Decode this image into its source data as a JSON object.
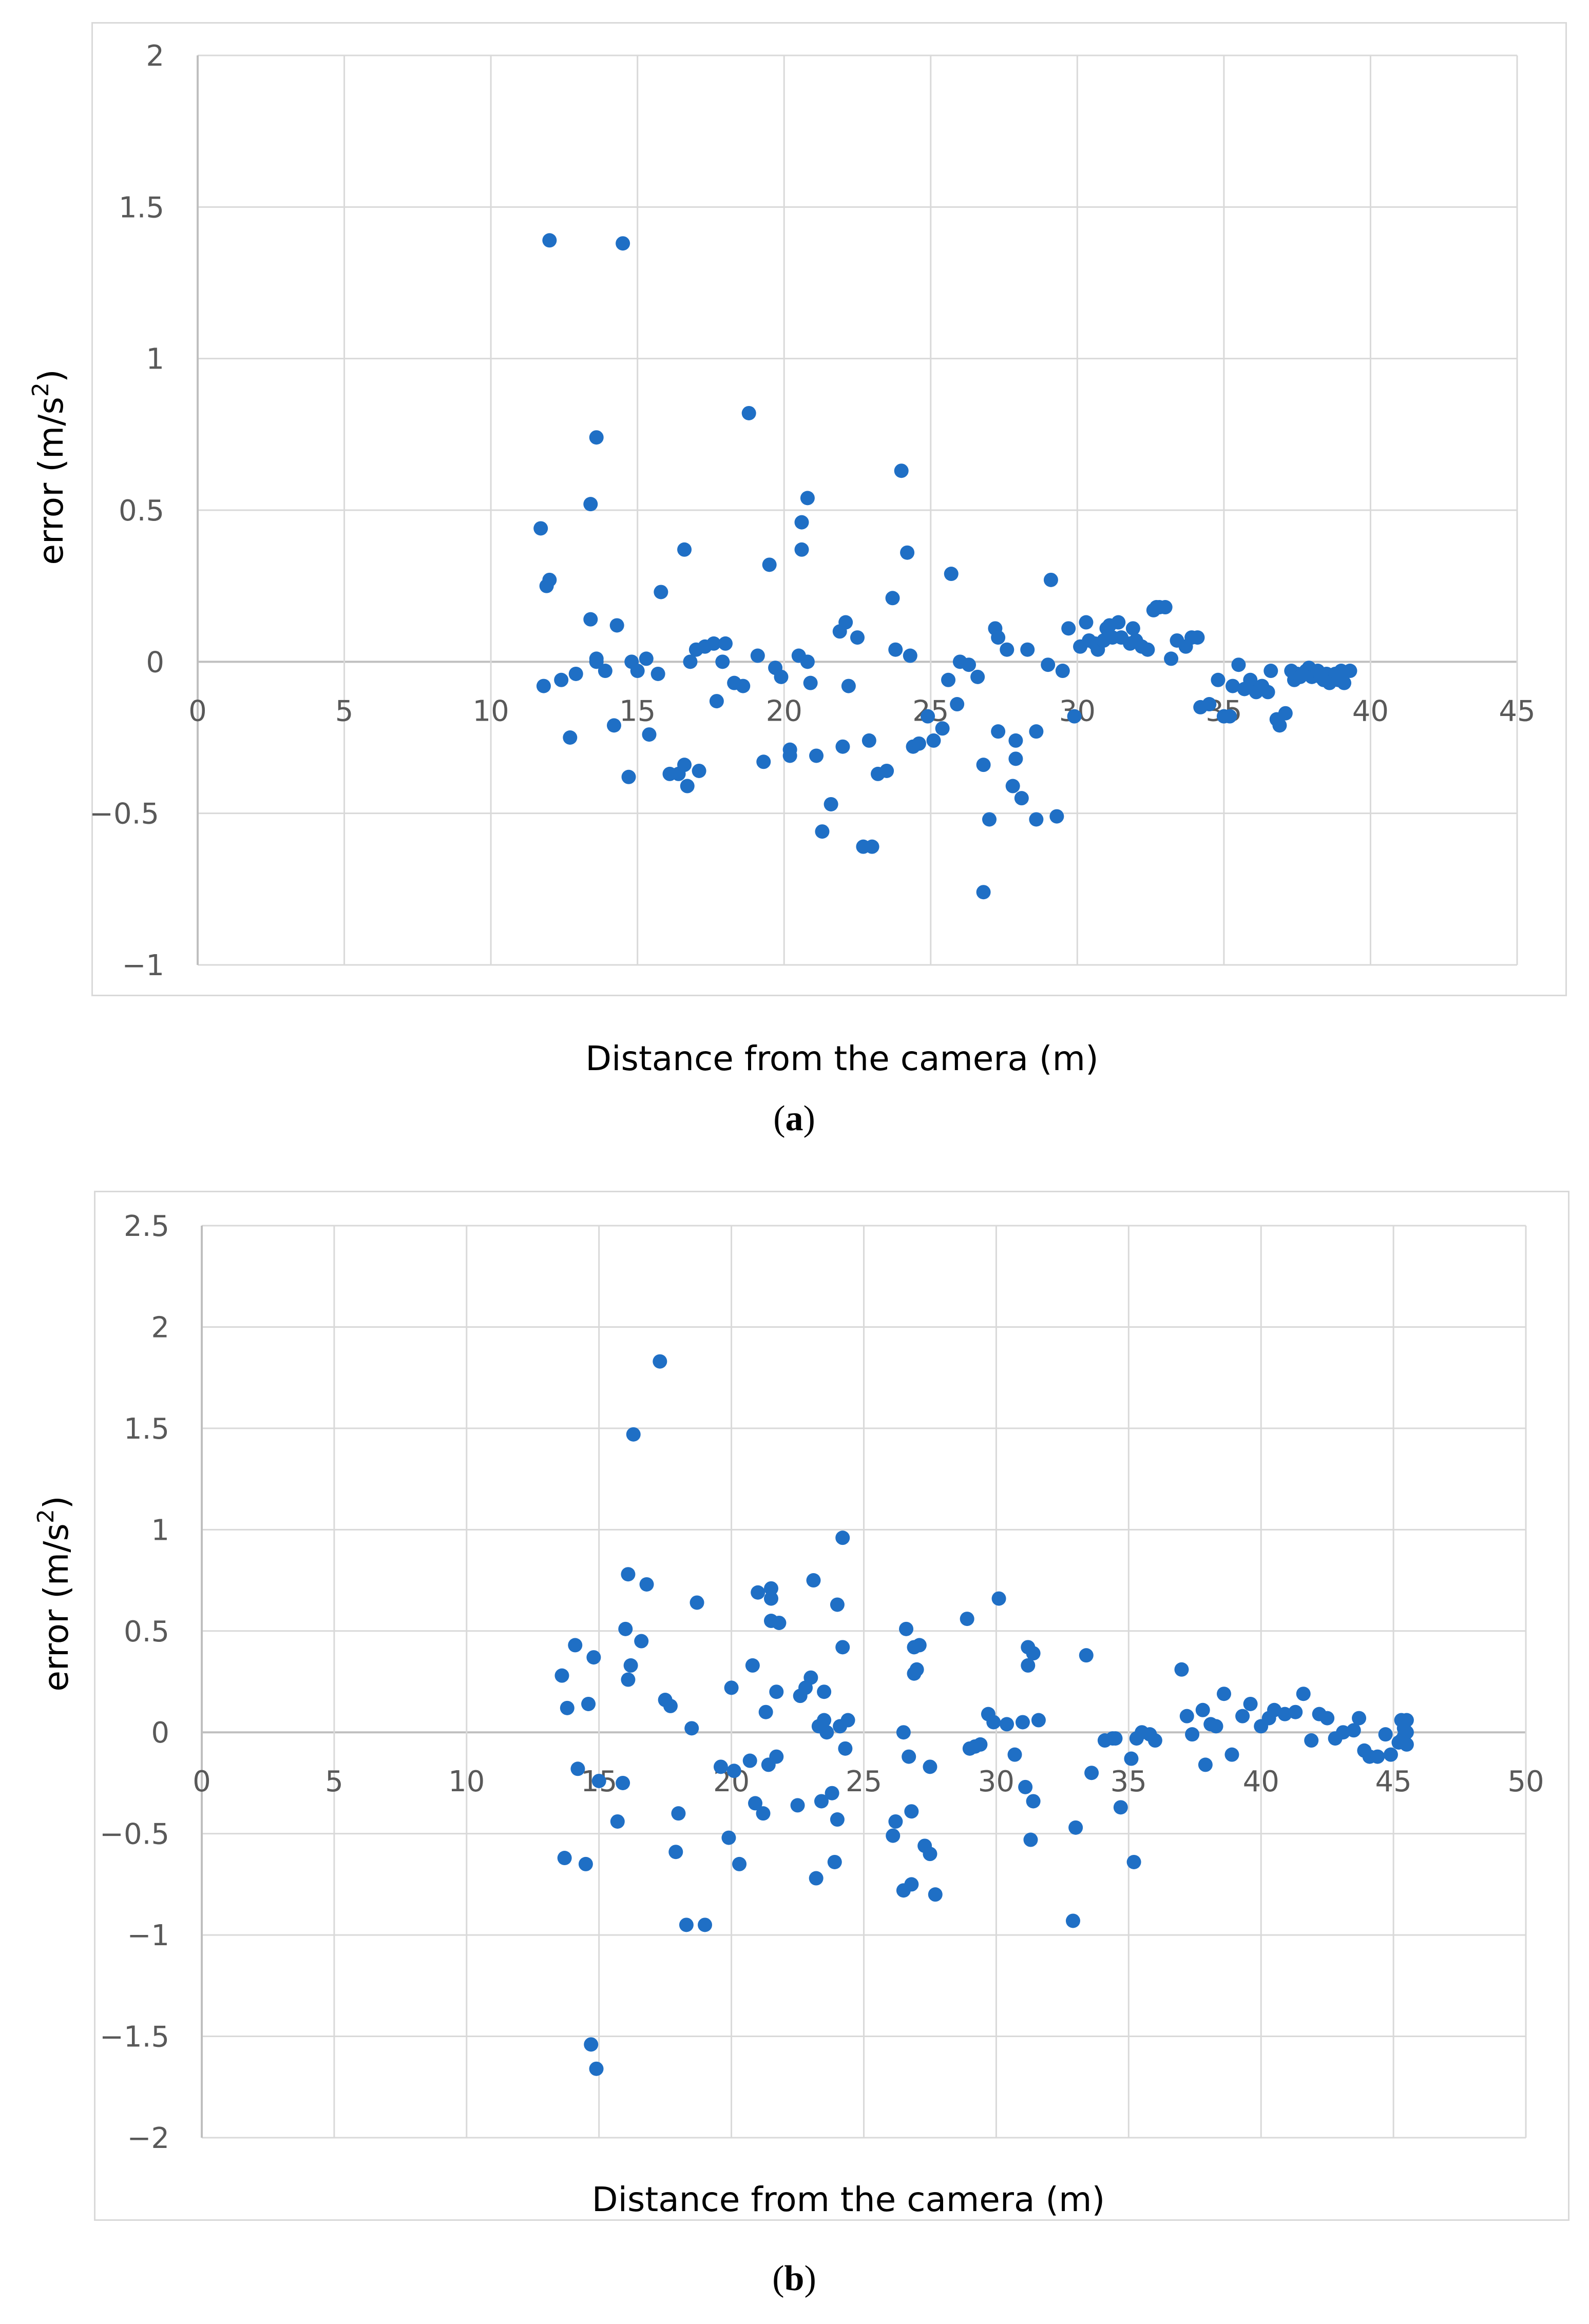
{
  "colors": {
    "point": "#1F6FC5",
    "grid": "#d9d9d9",
    "axis": "#bfbfbf",
    "tick_text": "#595959"
  },
  "captions": [
    "a",
    "b"
  ],
  "chart_data": [
    {
      "type": "scatter",
      "panel": "a",
      "xlabel": "Distance from the camera (m)",
      "ylabel_prefix": "error (m/s",
      "ylabel_sup": "2",
      "ylabel_suffix": ")",
      "xlim": [
        0,
        45
      ],
      "ylim": [
        -1,
        2
      ],
      "xticks": [
        0,
        5,
        10,
        15,
        20,
        25,
        30,
        35,
        40,
        45
      ],
      "yticks": [
        2,
        1.5,
        1,
        0.5,
        0,
        -1
      ],
      "ytick_labels": [
        "2",
        "1.5",
        "1",
        "0.5",
        "0",
        "−1"
      ],
      "ygrid": [
        -1,
        -0.5,
        0,
        0.5,
        1,
        1.5,
        2
      ],
      "neg_half_label": "−0.5",
      "points": [
        [
          11.7,
          0.44
        ],
        [
          11.8,
          -0.08
        ],
        [
          11.9,
          0.25
        ],
        [
          12.0,
          0.27
        ],
        [
          12.0,
          1.39
        ],
        [
          12.4,
          -0.06
        ],
        [
          12.7,
          -0.25
        ],
        [
          12.9,
          -0.04
        ],
        [
          13.4,
          0.52
        ],
        [
          13.4,
          0.14
        ],
        [
          13.6,
          0.74
        ],
        [
          13.6,
          0.01
        ],
        [
          13.6,
          0.0
        ],
        [
          13.9,
          -0.03
        ],
        [
          14.2,
          -0.21
        ],
        [
          14.3,
          0.12
        ],
        [
          14.5,
          1.38
        ],
        [
          14.7,
          -0.38
        ],
        [
          14.8,
          0.0
        ],
        [
          15.0,
          -0.03
        ],
        [
          15.3,
          0.01
        ],
        [
          15.4,
          -0.24
        ],
        [
          15.7,
          -0.04
        ],
        [
          15.8,
          0.23
        ],
        [
          16.1,
          -0.37
        ],
        [
          16.4,
          -0.37
        ],
        [
          16.6,
          0.37
        ],
        [
          16.6,
          -0.34
        ],
        [
          16.7,
          -0.41
        ],
        [
          16.8,
          0.0
        ],
        [
          17.0,
          0.04
        ],
        [
          17.1,
          -0.36
        ],
        [
          17.3,
          0.05
        ],
        [
          17.6,
          0.06
        ],
        [
          17.7,
          -0.13
        ],
        [
          17.9,
          0.0
        ],
        [
          18.0,
          0.06
        ],
        [
          18.3,
          -0.07
        ],
        [
          18.6,
          -0.08
        ],
        [
          18.8,
          0.82
        ],
        [
          19.1,
          0.02
        ],
        [
          19.3,
          -0.33
        ],
        [
          19.5,
          0.32
        ],
        [
          19.7,
          -0.02
        ],
        [
          19.9,
          -0.05
        ],
        [
          20.2,
          -0.29
        ],
        [
          20.2,
          -0.31
        ],
        [
          20.5,
          0.02
        ],
        [
          20.6,
          0.46
        ],
        [
          20.6,
          0.37
        ],
        [
          20.8,
          0.54
        ],
        [
          20.8,
          0.0
        ],
        [
          20.9,
          -0.07
        ],
        [
          21.1,
          -0.31
        ],
        [
          21.3,
          -0.56
        ],
        [
          21.6,
          -0.47
        ],
        [
          21.9,
          0.1
        ],
        [
          22.0,
          -0.28
        ],
        [
          22.1,
          0.13
        ],
        [
          22.2,
          -0.08
        ],
        [
          22.5,
          0.08
        ],
        [
          22.7,
          -0.61
        ],
        [
          22.9,
          -0.26
        ],
        [
          23.0,
          -0.61
        ],
        [
          23.2,
          -0.37
        ],
        [
          23.5,
          -0.36
        ],
        [
          23.7,
          0.21
        ],
        [
          23.8,
          0.04
        ],
        [
          24.0,
          0.63
        ],
        [
          24.2,
          0.36
        ],
        [
          24.3,
          0.02
        ],
        [
          24.4,
          -0.28
        ],
        [
          24.6,
          -0.27
        ],
        [
          24.9,
          -0.18
        ],
        [
          25.1,
          -0.26
        ],
        [
          25.4,
          -0.22
        ],
        [
          25.6,
          -0.06
        ],
        [
          25.7,
          0.29
        ],
        [
          25.9,
          -0.14
        ],
        [
          26.0,
          0.0
        ],
        [
          26.3,
          -0.01
        ],
        [
          26.6,
          -0.05
        ],
        [
          26.8,
          -0.34
        ],
        [
          26.8,
          -0.76
        ],
        [
          27.0,
          -0.52
        ],
        [
          27.2,
          0.11
        ],
        [
          27.3,
          0.08
        ],
        [
          27.3,
          -0.23
        ],
        [
          27.6,
          0.04
        ],
        [
          27.8,
          -0.41
        ],
        [
          27.9,
          -0.32
        ],
        [
          27.9,
          -0.26
        ],
        [
          28.1,
          -0.45
        ],
        [
          28.3,
          0.04
        ],
        [
          28.6,
          -0.52
        ],
        [
          28.6,
          -0.23
        ],
        [
          29.0,
          -0.01
        ],
        [
          29.1,
          0.27
        ],
        [
          29.3,
          -0.51
        ],
        [
          29.5,
          -0.03
        ],
        [
          29.7,
          0.11
        ],
        [
          29.9,
          -0.18
        ],
        [
          30.1,
          0.05
        ],
        [
          30.3,
          0.13
        ],
        [
          30.4,
          0.07
        ],
        [
          30.6,
          0.06
        ],
        [
          30.7,
          0.04
        ],
        [
          30.9,
          0.07
        ],
        [
          31.0,
          0.11
        ],
        [
          31.1,
          0.12
        ],
        [
          31.2,
          0.08
        ],
        [
          31.4,
          0.13
        ],
        [
          31.5,
          0.08
        ],
        [
          31.8,
          0.06
        ],
        [
          31.9,
          0.11
        ],
        [
          32.0,
          0.07
        ],
        [
          32.2,
          0.05
        ],
        [
          32.4,
          0.04
        ],
        [
          32.6,
          0.17
        ],
        [
          32.7,
          0.18
        ],
        [
          32.8,
          0.18
        ],
        [
          33.0,
          0.18
        ],
        [
          33.2,
          0.01
        ],
        [
          33.4,
          0.07
        ],
        [
          33.7,
          0.05
        ],
        [
          33.9,
          0.08
        ],
        [
          34.1,
          0.08
        ],
        [
          34.2,
          -0.15
        ],
        [
          34.5,
          -0.14
        ],
        [
          34.8,
          -0.06
        ],
        [
          35.0,
          -0.18
        ],
        [
          35.2,
          -0.18
        ],
        [
          35.3,
          -0.08
        ],
        [
          35.5,
          -0.01
        ],
        [
          35.7,
          -0.09
        ],
        [
          35.9,
          -0.06
        ],
        [
          36.1,
          -0.1
        ],
        [
          36.3,
          -0.08
        ],
        [
          36.5,
          -0.1
        ],
        [
          36.6,
          -0.03
        ],
        [
          36.8,
          -0.19
        ],
        [
          36.9,
          -0.21
        ],
        [
          37.1,
          -0.17
        ],
        [
          37.3,
          -0.03
        ],
        [
          37.4,
          -0.06
        ],
        [
          37.5,
          -0.04
        ],
        [
          37.6,
          -0.05
        ],
        [
          37.8,
          -0.03
        ],
        [
          37.9,
          -0.02
        ],
        [
          38.0,
          -0.05
        ],
        [
          38.1,
          -0.04
        ],
        [
          38.2,
          -0.03
        ],
        [
          38.3,
          -0.05
        ],
        [
          38.4,
          -0.06
        ],
        [
          38.5,
          -0.04
        ],
        [
          38.6,
          -0.07
        ],
        [
          38.7,
          -0.05
        ],
        [
          38.8,
          -0.04
        ],
        [
          38.9,
          -0.06
        ],
        [
          39.0,
          -0.03
        ],
        [
          39.1,
          -0.07
        ],
        [
          39.3,
          -0.03
        ]
      ]
    },
    {
      "type": "scatter",
      "panel": "b",
      "xlabel": "Distance from the camera (m)",
      "ylabel_prefix": "error (m/s",
      "ylabel_sup": "2",
      "ylabel_suffix": ")",
      "xlim": [
        0,
        50
      ],
      "ylim": [
        -2,
        2.5
      ],
      "xticks": [
        0,
        5,
        10,
        15,
        20,
        25,
        30,
        35,
        40,
        45,
        50
      ],
      "yticks": [
        2.5,
        2,
        1.5,
        1,
        0.5,
        0,
        -0.5,
        -1,
        -1.5,
        -2
      ],
      "ytick_labels": [
        "2.5",
        "2",
        "1.5",
        "1",
        "0.5",
        "0",
        "−0.5",
        "−1",
        "−1.5",
        "−2"
      ],
      "ygrid": [
        -2,
        -1.5,
        -1,
        -0.5,
        0,
        0.5,
        1,
        1.5,
        2,
        2.5
      ],
      "points": [
        [
          13.6,
          0.28
        ],
        [
          13.7,
          -0.62
        ],
        [
          13.8,
          0.12
        ],
        [
          14.1,
          0.43
        ],
        [
          14.2,
          -0.18
        ],
        [
          14.5,
          -0.65
        ],
        [
          14.6,
          0.14
        ],
        [
          14.7,
          -1.54
        ],
        [
          14.8,
          0.37
        ],
        [
          14.9,
          -1.66
        ],
        [
          15.0,
          -0.24
        ],
        [
          15.7,
          -0.44
        ],
        [
          15.9,
          -0.25
        ],
        [
          16.0,
          0.51
        ],
        [
          16.1,
          0.26
        ],
        [
          16.1,
          0.78
        ],
        [
          16.2,
          0.33
        ],
        [
          16.3,
          1.47
        ],
        [
          16.6,
          0.45
        ],
        [
          16.8,
          0.73
        ],
        [
          17.3,
          1.83
        ],
        [
          17.5,
          0.16
        ],
        [
          17.7,
          0.13
        ],
        [
          17.9,
          -0.59
        ],
        [
          18.0,
          -0.4
        ],
        [
          18.3,
          -0.95
        ],
        [
          18.5,
          0.02
        ],
        [
          18.7,
          0.64
        ],
        [
          19.0,
          -0.95
        ],
        [
          19.6,
          -0.17
        ],
        [
          19.9,
          -0.52
        ],
        [
          20.0,
          0.22
        ],
        [
          20.1,
          -0.19
        ],
        [
          20.3,
          -0.65
        ],
        [
          20.7,
          -0.14
        ],
        [
          20.8,
          0.33
        ],
        [
          20.9,
          -0.35
        ],
        [
          21.0,
          0.69
        ],
        [
          21.2,
          -0.4
        ],
        [
          21.3,
          0.1
        ],
        [
          21.4,
          -0.16
        ],
        [
          21.5,
          0.71
        ],
        [
          21.5,
          0.66
        ],
        [
          21.5,
          0.55
        ],
        [
          21.7,
          0.2
        ],
        [
          21.7,
          -0.12
        ],
        [
          21.8,
          0.54
        ],
        [
          22.5,
          -0.36
        ],
        [
          22.6,
          0.18
        ],
        [
          22.8,
          0.22
        ],
        [
          23.0,
          0.27
        ],
        [
          23.1,
          0.75
        ],
        [
          23.2,
          -0.72
        ],
        [
          23.3,
          0.03
        ],
        [
          23.4,
          -0.34
        ],
        [
          23.5,
          0.2
        ],
        [
          23.5,
          0.06
        ],
        [
          23.6,
          0.0
        ],
        [
          23.8,
          -0.3
        ],
        [
          23.9,
          -0.64
        ],
        [
          24.0,
          -0.43
        ],
        [
          24.0,
          0.63
        ],
        [
          24.1,
          0.03
        ],
        [
          24.2,
          0.42
        ],
        [
          24.2,
          0.96
        ],
        [
          24.3,
          -0.08
        ],
        [
          24.4,
          0.06
        ],
        [
          26.1,
          -0.51
        ],
        [
          26.2,
          -0.44
        ],
        [
          26.5,
          0.0
        ],
        [
          26.5,
          -0.78
        ],
        [
          26.6,
          0.51
        ],
        [
          26.7,
          -0.12
        ],
        [
          26.8,
          -0.39
        ],
        [
          26.8,
          -0.75
        ],
        [
          26.9,
          0.29
        ],
        [
          26.9,
          0.42
        ],
        [
          27.0,
          0.31
        ],
        [
          27.1,
          0.43
        ],
        [
          27.3,
          -0.56
        ],
        [
          27.5,
          -0.17
        ],
        [
          27.5,
          -0.6
        ],
        [
          27.7,
          -0.8
        ],
        [
          28.9,
          0.56
        ],
        [
          29.0,
          -0.08
        ],
        [
          29.2,
          -0.07
        ],
        [
          29.4,
          -0.06
        ],
        [
          29.7,
          0.09
        ],
        [
          29.9,
          0.05
        ],
        [
          30.1,
          0.66
        ],
        [
          30.4,
          0.04
        ],
        [
          30.7,
          -0.11
        ],
        [
          31.0,
          0.05
        ],
        [
          31.1,
          -0.27
        ],
        [
          31.2,
          0.33
        ],
        [
          31.2,
          0.42
        ],
        [
          31.3,
          -0.53
        ],
        [
          31.4,
          0.39
        ],
        [
          31.4,
          -0.34
        ],
        [
          31.6,
          0.06
        ],
        [
          32.9,
          -0.93
        ],
        [
          33.0,
          -0.47
        ],
        [
          33.4,
          0.38
        ],
        [
          33.6,
          -0.2
        ],
        [
          34.1,
          -0.04
        ],
        [
          34.4,
          -0.03
        ],
        [
          34.5,
          -0.03
        ],
        [
          34.7,
          -0.37
        ],
        [
          35.1,
          -0.13
        ],
        [
          35.2,
          -0.64
        ],
        [
          35.8,
          -0.01
        ],
        [
          36.0,
          -0.04
        ],
        [
          35.3,
          -0.03
        ],
        [
          35.5,
          0.0
        ],
        [
          37.0,
          0.31
        ],
        [
          37.2,
          0.08
        ],
        [
          37.4,
          -0.01
        ],
        [
          37.8,
          0.11
        ],
        [
          37.9,
          -0.16
        ],
        [
          38.1,
          0.04
        ],
        [
          38.3,
          0.03
        ],
        [
          38.6,
          0.19
        ],
        [
          38.9,
          -0.11
        ],
        [
          39.3,
          0.08
        ],
        [
          39.6,
          0.14
        ],
        [
          40.0,
          0.03
        ],
        [
          40.3,
          0.07
        ],
        [
          40.5,
          0.11
        ],
        [
          40.9,
          0.09
        ],
        [
          41.3,
          0.1
        ],
        [
          41.6,
          0.19
        ],
        [
          41.9,
          -0.04
        ],
        [
          42.2,
          0.09
        ],
        [
          42.5,
          0.07
        ],
        [
          42.8,
          -0.03
        ],
        [
          43.1,
          0.0
        ],
        [
          43.5,
          0.01
        ],
        [
          43.7,
          0.07
        ],
        [
          43.9,
          -0.09
        ],
        [
          44.1,
          -0.12
        ],
        [
          44.4,
          -0.12
        ],
        [
          44.7,
          -0.01
        ],
        [
          44.9,
          -0.11
        ],
        [
          45.2,
          -0.05
        ],
        [
          45.3,
          -0.04
        ],
        [
          45.3,
          0.06
        ],
        [
          45.4,
          0.02
        ],
        [
          45.4,
          -0.02
        ],
        [
          45.5,
          0.06
        ],
        [
          45.5,
          0.0
        ],
        [
          45.5,
          -0.06
        ]
      ]
    }
  ]
}
